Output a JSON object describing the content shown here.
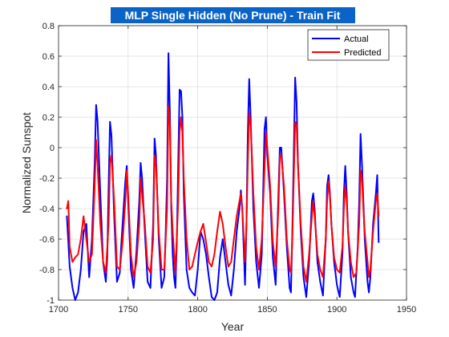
{
  "chart_data": {
    "type": "line",
    "title": "MLP Single Hidden (No Prune) - Train Fit",
    "xlabel": "Year",
    "ylabel": "Normalized Sunspot",
    "xlim": [
      1700,
      1950
    ],
    "ylim": [
      -1,
      0.8
    ],
    "xticks": [
      1700,
      1750,
      1800,
      1850,
      1900,
      1950
    ],
    "yticks": [
      -1,
      -0.8,
      -0.6,
      -0.4,
      -0.2,
      0,
      0.2,
      0.4,
      0.6,
      0.8
    ],
    "xtick_labels": [
      "1700",
      "1750",
      "1800",
      "1850",
      "1900",
      "1950"
    ],
    "ytick_labels": [
      "-1",
      "-0.8",
      "-0.6",
      "-0.4",
      "-0.2",
      "0",
      "0.2",
      "0.4",
      "0.6",
      "0.8"
    ],
    "grid": true,
    "legend_position": "top-right",
    "title_background": "#0a64c8",
    "series": [
      {
        "name": "Actual",
        "color": "#0000ff",
        "points": [
          [
            1706,
            -0.45
          ],
          [
            1708,
            -0.78
          ],
          [
            1710,
            -0.92
          ],
          [
            1712,
            -1.0
          ],
          [
            1714,
            -0.95
          ],
          [
            1716,
            -0.8
          ],
          [
            1718,
            -0.55
          ],
          [
            1720,
            -0.5
          ],
          [
            1722,
            -0.85
          ],
          [
            1724,
            -0.6
          ],
          [
            1726,
            -0.1
          ],
          [
            1727,
            0.28
          ],
          [
            1728,
            0.18
          ],
          [
            1730,
            -0.3
          ],
          [
            1732,
            -0.75
          ],
          [
            1734,
            -0.88
          ],
          [
            1735,
            -0.72
          ],
          [
            1736,
            -0.25
          ],
          [
            1737,
            0.17
          ],
          [
            1738,
            0.08
          ],
          [
            1740,
            -0.45
          ],
          [
            1742,
            -0.88
          ],
          [
            1744,
            -0.82
          ],
          [
            1745,
            -0.65
          ],
          [
            1746,
            -0.5
          ],
          [
            1748,
            -0.22
          ],
          [
            1749,
            -0.12
          ],
          [
            1750,
            -0.35
          ],
          [
            1752,
            -0.8
          ],
          [
            1754,
            -0.92
          ],
          [
            1756,
            -0.68
          ],
          [
            1758,
            -0.35
          ],
          [
            1759,
            -0.1
          ],
          [
            1760,
            -0.2
          ],
          [
            1762,
            -0.55
          ],
          [
            1764,
            -0.88
          ],
          [
            1766,
            -0.92
          ],
          [
            1768,
            -0.5
          ],
          [
            1769,
            0.06
          ],
          [
            1770,
            -0.05
          ],
          [
            1772,
            -0.6
          ],
          [
            1774,
            -0.92
          ],
          [
            1776,
            -0.85
          ],
          [
            1777,
            -0.55
          ],
          [
            1778,
            -0.2
          ],
          [
            1779,
            0.62
          ],
          [
            1780,
            0.22
          ],
          [
            1781,
            -0.4
          ],
          [
            1782,
            -0.7
          ],
          [
            1783,
            -0.85
          ],
          [
            1784,
            -0.92
          ],
          [
            1785,
            -0.6
          ],
          [
            1786,
            -0.1
          ],
          [
            1787,
            0.38
          ],
          [
            1788,
            0.37
          ],
          [
            1789,
            0.2
          ],
          [
            1790,
            -0.3
          ],
          [
            1792,
            -0.8
          ],
          [
            1794,
            -0.92
          ],
          [
            1796,
            -0.95
          ],
          [
            1798,
            -0.97
          ],
          [
            1800,
            -0.8
          ],
          [
            1802,
            -0.55
          ],
          [
            1804,
            -0.6
          ],
          [
            1806,
            -0.7
          ],
          [
            1808,
            -0.85
          ],
          [
            1810,
            -0.98
          ],
          [
            1812,
            -1.0
          ],
          [
            1814,
            -0.95
          ],
          [
            1816,
            -0.72
          ],
          [
            1818,
            -0.6
          ],
          [
            1820,
            -0.75
          ],
          [
            1822,
            -0.9
          ],
          [
            1824,
            -0.97
          ],
          [
            1826,
            -0.8
          ],
          [
            1828,
            -0.55
          ],
          [
            1830,
            -0.4
          ],
          [
            1831,
            -0.28
          ],
          [
            1832,
            -0.4
          ],
          [
            1834,
            -0.9
          ],
          [
            1835,
            -0.5
          ],
          [
            1836,
            0.1
          ],
          [
            1837,
            0.45
          ],
          [
            1838,
            0.2
          ],
          [
            1840,
            -0.4
          ],
          [
            1842,
            -0.75
          ],
          [
            1844,
            -0.92
          ],
          [
            1846,
            -0.7
          ],
          [
            1847,
            -0.3
          ],
          [
            1848,
            0.12
          ],
          [
            1849,
            0.2
          ],
          [
            1850,
            -0.05
          ],
          [
            1852,
            -0.3
          ],
          [
            1854,
            -0.72
          ],
          [
            1856,
            -0.9
          ],
          [
            1858,
            -0.3
          ],
          [
            1859,
            0.0
          ],
          [
            1860,
            0.0
          ],
          [
            1861,
            -0.15
          ],
          [
            1862,
            -0.3
          ],
          [
            1864,
            -0.65
          ],
          [
            1866,
            -0.92
          ],
          [
            1867,
            -0.95
          ],
          [
            1868,
            -0.55
          ],
          [
            1869,
            -0.05
          ],
          [
            1870,
            0.46
          ],
          [
            1871,
            0.3
          ],
          [
            1872,
            -0.1
          ],
          [
            1874,
            -0.55
          ],
          [
            1876,
            -0.85
          ],
          [
            1878,
            -0.98
          ],
          [
            1880,
            -0.75
          ],
          [
            1882,
            -0.35
          ],
          [
            1883,
            -0.3
          ],
          [
            1884,
            -0.4
          ],
          [
            1886,
            -0.75
          ],
          [
            1888,
            -0.88
          ],
          [
            1890,
            -0.97
          ],
          [
            1892,
            -0.6
          ],
          [
            1893,
            -0.25
          ],
          [
            1894,
            -0.18
          ],
          [
            1895,
            -0.3
          ],
          [
            1896,
            -0.5
          ],
          [
            1898,
            -0.75
          ],
          [
            1900,
            -0.9
          ],
          [
            1902,
            -0.98
          ],
          [
            1904,
            -0.7
          ],
          [
            1905,
            -0.3
          ],
          [
            1906,
            -0.12
          ],
          [
            1907,
            -0.3
          ],
          [
            1908,
            -0.55
          ],
          [
            1910,
            -0.85
          ],
          [
            1912,
            -0.95
          ],
          [
            1913,
            -0.98
          ],
          [
            1915,
            -0.65
          ],
          [
            1916,
            -0.35
          ],
          [
            1917,
            0.09
          ],
          [
            1918,
            -0.1
          ],
          [
            1919,
            -0.35
          ],
          [
            1920,
            -0.6
          ],
          [
            1922,
            -0.88
          ],
          [
            1923,
            -0.95
          ],
          [
            1924,
            -0.85
          ],
          [
            1926,
            -0.5
          ],
          [
            1928,
            -0.3
          ],
          [
            1929,
            -0.18
          ],
          [
            1930,
            -0.62
          ]
        ]
      },
      {
        "name": "Predicted",
        "color": "#ff0000",
        "points": [
          [
            1706,
            -0.4
          ],
          [
            1707,
            -0.35
          ],
          [
            1708,
            -0.65
          ],
          [
            1710,
            -0.75
          ],
          [
            1712,
            -0.72
          ],
          [
            1714,
            -0.7
          ],
          [
            1716,
            -0.6
          ],
          [
            1718,
            -0.45
          ],
          [
            1720,
            -0.6
          ],
          [
            1722,
            -0.75
          ],
          [
            1724,
            -0.7
          ],
          [
            1726,
            -0.25
          ],
          [
            1727,
            0.05
          ],
          [
            1728,
            -0.1
          ],
          [
            1730,
            -0.5
          ],
          [
            1732,
            -0.75
          ],
          [
            1734,
            -0.82
          ],
          [
            1736,
            -0.5
          ],
          [
            1737,
            -0.1
          ],
          [
            1738,
            -0.05
          ],
          [
            1740,
            -0.35
          ],
          [
            1742,
            -0.78
          ],
          [
            1744,
            -0.8
          ],
          [
            1746,
            -0.62
          ],
          [
            1748,
            -0.35
          ],
          [
            1749,
            -0.15
          ],
          [
            1750,
            -0.3
          ],
          [
            1752,
            -0.7
          ],
          [
            1754,
            -0.85
          ],
          [
            1756,
            -0.75
          ],
          [
            1758,
            -0.5
          ],
          [
            1759,
            -0.2
          ],
          [
            1760,
            -0.3
          ],
          [
            1762,
            -0.5
          ],
          [
            1764,
            -0.78
          ],
          [
            1766,
            -0.82
          ],
          [
            1768,
            -0.6
          ],
          [
            1769,
            -0.05
          ],
          [
            1770,
            -0.1
          ],
          [
            1772,
            -0.55
          ],
          [
            1774,
            -0.8
          ],
          [
            1776,
            -0.8
          ],
          [
            1778,
            -0.4
          ],
          [
            1779,
            0.27
          ],
          [
            1780,
            0.15
          ],
          [
            1781,
            -0.35
          ],
          [
            1782,
            -0.55
          ],
          [
            1784,
            -0.82
          ],
          [
            1786,
            -0.35
          ],
          [
            1787,
            0.1
          ],
          [
            1788,
            0.2
          ],
          [
            1789,
            0.1
          ],
          [
            1790,
            -0.2
          ],
          [
            1792,
            -0.6
          ],
          [
            1794,
            -0.8
          ],
          [
            1796,
            -0.78
          ],
          [
            1798,
            -0.7
          ],
          [
            1800,
            -0.62
          ],
          [
            1802,
            -0.55
          ],
          [
            1804,
            -0.5
          ],
          [
            1806,
            -0.62
          ],
          [
            1808,
            -0.75
          ],
          [
            1810,
            -0.78
          ],
          [
            1812,
            -0.7
          ],
          [
            1814,
            -0.55
          ],
          [
            1816,
            -0.42
          ],
          [
            1818,
            -0.5
          ],
          [
            1820,
            -0.65
          ],
          [
            1822,
            -0.78
          ],
          [
            1824,
            -0.75
          ],
          [
            1826,
            -0.6
          ],
          [
            1828,
            -0.45
          ],
          [
            1830,
            -0.35
          ],
          [
            1831,
            -0.3
          ],
          [
            1832,
            -0.4
          ],
          [
            1834,
            -0.75
          ],
          [
            1835,
            -0.5
          ],
          [
            1836,
            -0.1
          ],
          [
            1837,
            0.23
          ],
          [
            1838,
            0.15
          ],
          [
            1840,
            -0.3
          ],
          [
            1842,
            -0.65
          ],
          [
            1844,
            -0.8
          ],
          [
            1846,
            -0.6
          ],
          [
            1848,
            -0.15
          ],
          [
            1849,
            0.1
          ],
          [
            1850,
            0.0
          ],
          [
            1852,
            -0.25
          ],
          [
            1854,
            -0.62
          ],
          [
            1856,
            -0.78
          ],
          [
            1858,
            -0.4
          ],
          [
            1859,
            -0.05
          ],
          [
            1860,
            -0.05
          ],
          [
            1862,
            -0.25
          ],
          [
            1864,
            -0.6
          ],
          [
            1866,
            -0.8
          ],
          [
            1867,
            -0.82
          ],
          [
            1868,
            -0.6
          ],
          [
            1869,
            -0.2
          ],
          [
            1870,
            0.17
          ],
          [
            1871,
            0.15
          ],
          [
            1872,
            -0.1
          ],
          [
            1874,
            -0.5
          ],
          [
            1876,
            -0.78
          ],
          [
            1878,
            -0.88
          ],
          [
            1880,
            -0.7
          ],
          [
            1882,
            -0.45
          ],
          [
            1883,
            -0.35
          ],
          [
            1884,
            -0.45
          ],
          [
            1886,
            -0.7
          ],
          [
            1888,
            -0.8
          ],
          [
            1890,
            -0.85
          ],
          [
            1892,
            -0.6
          ],
          [
            1893,
            -0.35
          ],
          [
            1894,
            -0.22
          ],
          [
            1895,
            -0.32
          ],
          [
            1896,
            -0.5
          ],
          [
            1898,
            -0.72
          ],
          [
            1900,
            -0.8
          ],
          [
            1902,
            -0.82
          ],
          [
            1904,
            -0.65
          ],
          [
            1905,
            -0.4
          ],
          [
            1906,
            -0.25
          ],
          [
            1907,
            -0.35
          ],
          [
            1908,
            -0.55
          ],
          [
            1910,
            -0.75
          ],
          [
            1912,
            -0.85
          ],
          [
            1914,
            -0.82
          ],
          [
            1916,
            -0.5
          ],
          [
            1917,
            -0.15
          ],
          [
            1918,
            -0.2
          ],
          [
            1919,
            -0.4
          ],
          [
            1920,
            -0.55
          ],
          [
            1922,
            -0.75
          ],
          [
            1923,
            -0.85
          ],
          [
            1924,
            -0.8
          ],
          [
            1926,
            -0.55
          ],
          [
            1928,
            -0.35
          ],
          [
            1929,
            -0.3
          ],
          [
            1930,
            -0.45
          ]
        ]
      }
    ]
  }
}
